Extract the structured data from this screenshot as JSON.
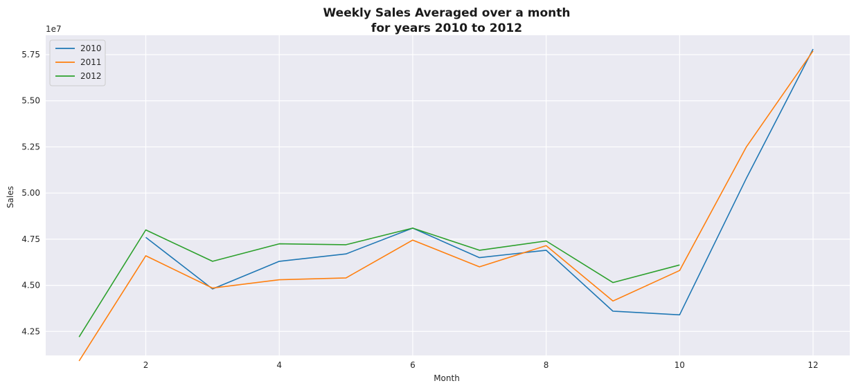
{
  "chart_data": {
    "type": "line",
    "title": "Weekly Sales Averaged over a month\nfor years 2010 to  2012",
    "title_lines": [
      "Weekly Sales Averaged over a month",
      "for years 2010 to  2012"
    ],
    "xlabel": "Month",
    "ylabel": "Sales",
    "y_offset_label": "1e7",
    "xlim": [
      0.5,
      12.55
    ],
    "ylim": [
      41200000,
      58550000
    ],
    "xticks": [
      2,
      4,
      6,
      8,
      10,
      12
    ],
    "yticks": [
      42500000,
      45000000,
      47500000,
      50000000,
      52500000,
      55000000,
      57500000
    ],
    "ytick_labels": [
      "4.25",
      "4.50",
      "4.75",
      "5.00",
      "5.25",
      "5.50",
      "5.75"
    ],
    "grid": true,
    "legend_position": "top-left",
    "series": [
      {
        "name": "2010",
        "color": "#1f77b4",
        "x": [
          2,
          3,
          4,
          5,
          6,
          7,
          8,
          9,
          10,
          11,
          12
        ],
        "values": [
          47600000,
          44800000,
          46300000,
          46700000,
          48100000,
          46500000,
          46900000,
          43600000,
          43400000,
          50800000,
          57800000
        ]
      },
      {
        "name": "2011",
        "color": "#ff7f0e",
        "x": [
          1,
          2,
          3,
          4,
          5,
          6,
          7,
          8,
          9,
          10,
          11,
          12
        ],
        "values": [
          40900000,
          46600000,
          44850000,
          45300000,
          45400000,
          47450000,
          46000000,
          47150000,
          44150000,
          45800000,
          52500000,
          57700000
        ]
      },
      {
        "name": "2012",
        "color": "#2ca02c",
        "x": [
          1,
          2,
          3,
          4,
          5,
          6,
          7,
          8,
          9,
          10
        ],
        "values": [
          42200000,
          48000000,
          46300000,
          47250000,
          47200000,
          48100000,
          46900000,
          47400000,
          45150000,
          46100000
        ]
      }
    ]
  }
}
